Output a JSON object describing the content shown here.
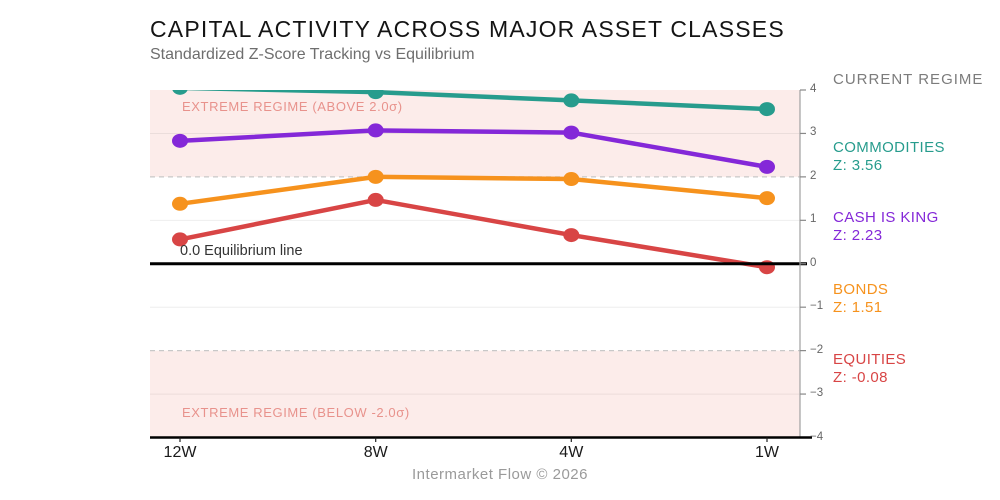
{
  "header": {
    "title": "CAPITAL ACTIVITY ACROSS MAJOR ASSET CLASSES",
    "subtitle": "Standardized Z-Score Tracking vs Equilibrium"
  },
  "footer": {
    "caption": "Intermarket Flow © 2026"
  },
  "panel": {
    "heading": "CURRENT REGIME",
    "entries": [
      {
        "name": "COMMODITIES",
        "z": "Z: 3.56",
        "color": "#279c8d"
      },
      {
        "name": "CASH IS KING",
        "z": "Z: 2.23",
        "color": "#8428d8"
      },
      {
        "name": "BONDS",
        "z": "Z: 1.51",
        "color": "#f6921d"
      },
      {
        "name": "EQUITIES",
        "z": "Z: -0.08",
        "color": "#d84545"
      }
    ]
  },
  "chart_data": {
    "type": "line",
    "categories": [
      "12W",
      "8W",
      "4W",
      "1W"
    ],
    "series": [
      {
        "name": "COMMODITIES",
        "color": "#279c8d",
        "values": [
          4.05,
          3.95,
          3.76,
          3.56
        ]
      },
      {
        "name": "CASH IS KING",
        "color": "#8428d8",
        "values": [
          2.83,
          3.07,
          3.02,
          2.23
        ]
      },
      {
        "name": "BONDS",
        "color": "#f6921d",
        "values": [
          1.38,
          2.0,
          1.95,
          1.51
        ]
      },
      {
        "name": "EQUITIES",
        "color": "#d84545",
        "values": [
          0.56,
          1.47,
          0.66,
          -0.08
        ]
      }
    ],
    "title": "CAPITAL ACTIVITY ACROSS MAJOR ASSET CLASSES",
    "xlabel": "",
    "ylabel": "",
    "ylim": [
      -4,
      4
    ],
    "yticks": [
      4,
      3,
      2,
      1,
      0,
      -1,
      -2,
      -3,
      -4
    ],
    "ytick_labels": [
      "4",
      "3",
      "2",
      "1",
      "0",
      "−1",
      "−2",
      "−3",
      "−4"
    ],
    "grid": true,
    "legend_position": "right",
    "annotations": {
      "equilibrium_value": 0,
      "equilibrium_label": "0.0 Equilibrium line",
      "upper_band": [
        2,
        4
      ],
      "lower_band": [
        -4,
        -2
      ],
      "extreme_above_label": "EXTREME REGIME (ABOVE 2.0σ)",
      "extreme_below_label": "EXTREME REGIME (BELOW -2.0σ)",
      "band_color": "#fcecea",
      "band_text_color": "#e8928c",
      "dashed_line_color": "#c8c8c8",
      "equilibrium_color": "#000000"
    }
  }
}
